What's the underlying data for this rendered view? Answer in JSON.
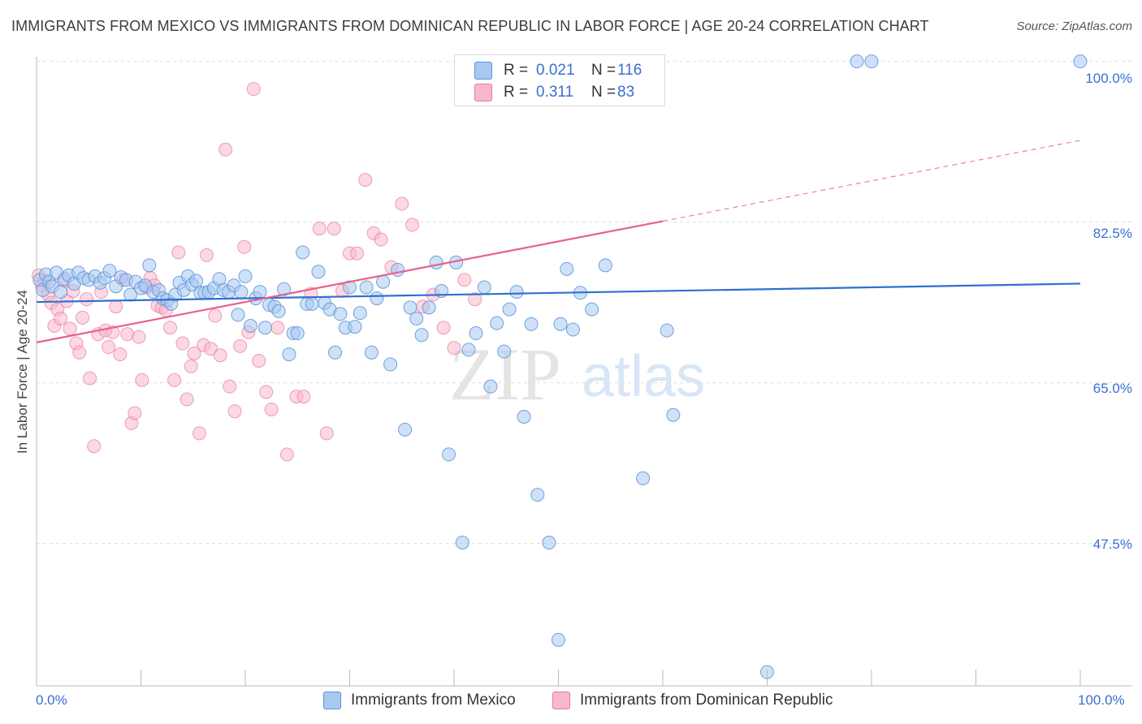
{
  "title": "IMMIGRANTS FROM MEXICO VS IMMIGRANTS FROM DOMINICAN REPUBLIC IN LABOR FORCE | AGE 20-24 CORRELATION CHART",
  "source": "Source: ZipAtlas.com",
  "watermark": {
    "zip": "ZIP",
    "atlas": "atlas"
  },
  "legend": {
    "r_label": "R =",
    "n_label": "N =",
    "rows": [
      {
        "r": "0.021",
        "n": "116",
        "color": "#a8c8f0"
      },
      {
        "r": "0.311",
        "n": "83",
        "color": "#f8b8cc"
      }
    ]
  },
  "bottom_legend": [
    "Immigrants from Mexico",
    "Immigrants from Dominican Republic"
  ],
  "chart_data": {
    "type": "scatter",
    "xlabel": "",
    "ylabel": "In Labor Force | Age 20-24",
    "x_ticks": [
      "0.0%",
      "100.0%"
    ],
    "y_ticks": [
      "100.0%",
      "82.5%",
      "65.0%",
      "47.5%"
    ],
    "xlim": [
      0,
      100
    ],
    "ylim": [
      32,
      100.5
    ],
    "grid": true,
    "colors": {
      "mexico": "#5b93d9",
      "mexico_fill": "#a8c8f0",
      "dominican": "#e8799a",
      "dominican_fill": "#f8b8cc",
      "mexico_line": "#2f6fcf",
      "dominican_line": "#e8628a"
    },
    "series": [
      {
        "name": "Immigrants from Mexico",
        "trend": {
          "x": [
            0,
            100
          ],
          "y": [
            73.8,
            75.8
          ]
        },
        "points": [
          [
            0.3,
            76.2
          ],
          [
            0.6,
            75.1
          ],
          [
            0.9,
            76.8
          ],
          [
            1.2,
            76.0
          ],
          [
            1.5,
            75.5
          ],
          [
            1.9,
            77.0
          ],
          [
            2.3,
            74.9
          ],
          [
            2.7,
            76.3
          ],
          [
            3.1,
            76.7
          ],
          [
            3.6,
            75.8
          ],
          [
            4.0,
            77.0
          ],
          [
            4.5,
            76.4
          ],
          [
            5.0,
            76.2
          ],
          [
            5.6,
            76.6
          ],
          [
            6.1,
            75.9
          ],
          [
            6.5,
            76.4
          ],
          [
            7.0,
            77.2
          ],
          [
            7.6,
            75.5
          ],
          [
            8.1,
            76.5
          ],
          [
            8.6,
            76.2
          ],
          [
            9.0,
            74.6
          ],
          [
            9.5,
            76.0
          ],
          [
            10.0,
            75.3
          ],
          [
            10.4,
            75.6
          ],
          [
            10.8,
            77.8
          ],
          [
            11.2,
            74.9
          ],
          [
            11.7,
            75.1
          ],
          [
            12.1,
            74.2
          ],
          [
            12.5,
            74.0
          ],
          [
            12.9,
            73.6
          ],
          [
            13.3,
            74.6
          ],
          [
            13.7,
            75.9
          ],
          [
            14.1,
            75.1
          ],
          [
            14.5,
            76.6
          ],
          [
            14.9,
            75.7
          ],
          [
            15.3,
            76.1
          ],
          [
            15.7,
            74.8
          ],
          [
            16.1,
            74.8
          ],
          [
            16.5,
            74.9
          ],
          [
            17.0,
            75.3
          ],
          [
            17.5,
            76.3
          ],
          [
            17.9,
            75.1
          ],
          [
            18.4,
            74.9
          ],
          [
            18.9,
            75.6
          ],
          [
            19.3,
            72.4
          ],
          [
            19.6,
            74.9
          ],
          [
            20.0,
            76.6
          ],
          [
            20.5,
            71.2
          ],
          [
            21.0,
            74.2
          ],
          [
            21.4,
            74.9
          ],
          [
            21.9,
            71.0
          ],
          [
            22.3,
            73.5
          ],
          [
            22.8,
            73.3
          ],
          [
            23.2,
            72.8
          ],
          [
            23.7,
            75.2
          ],
          [
            24.2,
            68.1
          ],
          [
            24.6,
            70.4
          ],
          [
            25.0,
            70.4
          ],
          [
            25.5,
            79.2
          ],
          [
            25.9,
            73.6
          ],
          [
            26.4,
            73.6
          ],
          [
            27.0,
            77.1
          ],
          [
            27.6,
            73.7
          ],
          [
            28.1,
            73.0
          ],
          [
            28.6,
            68.3
          ],
          [
            29.1,
            72.5
          ],
          [
            29.6,
            71.0
          ],
          [
            30.0,
            75.4
          ],
          [
            30.5,
            71.1
          ],
          [
            31.0,
            72.6
          ],
          [
            31.6,
            75.4
          ],
          [
            32.1,
            68.3
          ],
          [
            32.6,
            74.2
          ],
          [
            33.2,
            76.0
          ],
          [
            33.9,
            67.0
          ],
          [
            34.6,
            77.3
          ],
          [
            35.3,
            59.9
          ],
          [
            35.8,
            73.2
          ],
          [
            36.4,
            72.0
          ],
          [
            36.9,
            70.2
          ],
          [
            37.6,
            73.2
          ],
          [
            38.3,
            78.1
          ],
          [
            38.8,
            75.0
          ],
          [
            39.5,
            57.2
          ],
          [
            40.2,
            78.1
          ],
          [
            40.8,
            47.6
          ],
          [
            41.4,
            68.6
          ],
          [
            42.1,
            70.4
          ],
          [
            42.9,
            75.4
          ],
          [
            43.5,
            64.6
          ],
          [
            44.1,
            71.5
          ],
          [
            44.8,
            68.4
          ],
          [
            45.3,
            73.0
          ],
          [
            46.0,
            74.9
          ],
          [
            46.7,
            61.3
          ],
          [
            47.4,
            71.4
          ],
          [
            48.0,
            52.8
          ],
          [
            49.1,
            47.6
          ],
          [
            50.2,
            71.4
          ],
          [
            50.8,
            77.4
          ],
          [
            51.4,
            70.8
          ],
          [
            52.1,
            74.8
          ],
          [
            53.2,
            73.0
          ],
          [
            54.5,
            77.8
          ],
          [
            58.1,
            54.6
          ],
          [
            60.4,
            70.7
          ],
          [
            61.0,
            61.5
          ],
          [
            78.6,
            100.0
          ],
          [
            80.0,
            100.0
          ],
          [
            100.0,
            100.0
          ],
          [
            50.0,
            37.0
          ],
          [
            70.0,
            33.5
          ],
          [
            46.0,
            100.0
          ],
          [
            48.5,
            100.0
          ],
          [
            52.0,
            100.0
          ],
          [
            55.5,
            100.0
          ]
        ]
      },
      {
        "name": "Immigrants from Dominican Republic",
        "trend": {
          "x": [
            0,
            60
          ],
          "y": [
            69.4,
            82.6
          ]
        },
        "trend_extension": {
          "x": [
            60,
            100
          ],
          "y": [
            82.6,
            91.4
          ]
        },
        "points": [
          [
            0.2,
            76.7
          ],
          [
            0.5,
            75.6
          ],
          [
            0.8,
            76.1
          ],
          [
            1.1,
            74.6
          ],
          [
            1.4,
            73.7
          ],
          [
            1.7,
            71.2
          ],
          [
            2.0,
            73.0
          ],
          [
            2.3,
            72.0
          ],
          [
            2.6,
            76.1
          ],
          [
            2.9,
            73.9
          ],
          [
            3.2,
            70.9
          ],
          [
            3.5,
            75.0
          ],
          [
            3.8,
            69.3
          ],
          [
            4.1,
            68.3
          ],
          [
            4.4,
            72.1
          ],
          [
            4.8,
            74.1
          ],
          [
            5.1,
            65.5
          ],
          [
            5.5,
            58.1
          ],
          [
            5.9,
            70.3
          ],
          [
            6.2,
            74.9
          ],
          [
            6.6,
            70.7
          ],
          [
            6.9,
            68.9
          ],
          [
            7.3,
            70.5
          ],
          [
            7.6,
            73.3
          ],
          [
            8.0,
            68.1
          ],
          [
            8.3,
            76.2
          ],
          [
            8.7,
            70.3
          ],
          [
            9.1,
            60.6
          ],
          [
            9.4,
            61.7
          ],
          [
            9.8,
            70.0
          ],
          [
            10.1,
            65.3
          ],
          [
            10.5,
            75.4
          ],
          [
            10.9,
            76.4
          ],
          [
            11.3,
            75.6
          ],
          [
            11.6,
            73.4
          ],
          [
            12.0,
            73.2
          ],
          [
            12.4,
            72.9
          ],
          [
            12.8,
            71.0
          ],
          [
            13.2,
            65.3
          ],
          [
            13.6,
            79.2
          ],
          [
            14.0,
            69.3
          ],
          [
            14.4,
            63.2
          ],
          [
            14.8,
            66.8
          ],
          [
            15.1,
            68.2
          ],
          [
            15.6,
            59.5
          ],
          [
            16.0,
            69.1
          ],
          [
            16.3,
            78.9
          ],
          [
            16.7,
            68.7
          ],
          [
            17.1,
            72.3
          ],
          [
            17.6,
            68.0
          ],
          [
            18.1,
            90.4
          ],
          [
            18.5,
            64.6
          ],
          [
            19.0,
            61.9
          ],
          [
            19.5,
            69.0
          ],
          [
            19.9,
            79.8
          ],
          [
            20.3,
            70.5
          ],
          [
            20.8,
            97.0
          ],
          [
            21.3,
            67.4
          ],
          [
            22.0,
            64.0
          ],
          [
            22.5,
            62.1
          ],
          [
            23.1,
            71.0
          ],
          [
            24.0,
            57.2
          ],
          [
            24.9,
            63.5
          ],
          [
            25.6,
            63.5
          ],
          [
            26.3,
            74.7
          ],
          [
            27.1,
            81.8
          ],
          [
            27.8,
            59.5
          ],
          [
            28.5,
            81.8
          ],
          [
            29.3,
            75.0
          ],
          [
            30.0,
            79.1
          ],
          [
            30.7,
            79.1
          ],
          [
            31.5,
            87.1
          ],
          [
            32.3,
            81.3
          ],
          [
            33.0,
            80.6
          ],
          [
            34.0,
            77.6
          ],
          [
            35.0,
            84.5
          ],
          [
            36.0,
            82.2
          ],
          [
            37.0,
            73.3
          ],
          [
            38.0,
            74.6
          ],
          [
            39.0,
            71.0
          ],
          [
            40.0,
            68.8
          ],
          [
            41.0,
            76.2
          ],
          [
            42.0,
            74.1
          ]
        ]
      }
    ]
  }
}
